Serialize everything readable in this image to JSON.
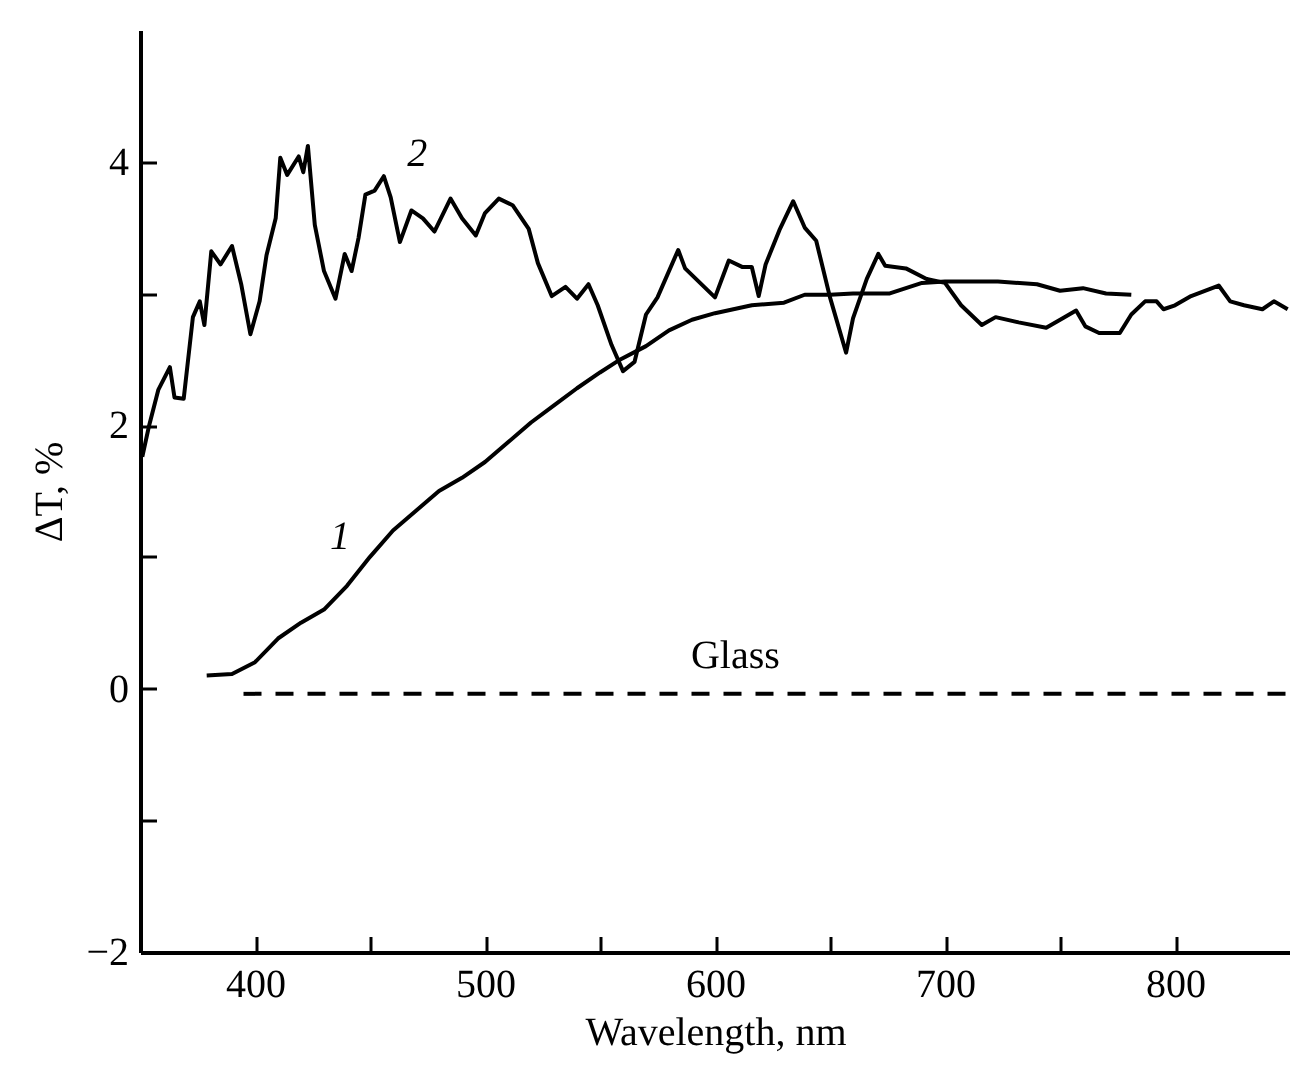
{
  "chart_data": {
    "type": "line",
    "xlabel": "Wavelength, nm",
    "ylabel": "ΔT, %",
    "xlim": [
      350,
      850
    ],
    "ylim": [
      -2,
      5
    ],
    "xticks": [
      {
        "value": 400,
        "label": "400"
      },
      {
        "value": 450,
        "label": null
      },
      {
        "value": 500,
        "label": "500"
      },
      {
        "value": 550,
        "label": null
      },
      {
        "value": 600,
        "label": "600"
      },
      {
        "value": 650,
        "label": null
      },
      {
        "value": 700,
        "label": "700"
      },
      {
        "value": 750,
        "label": null
      },
      {
        "value": 800,
        "label": "800"
      }
    ],
    "yticks": [
      {
        "value": -2,
        "label": "−2"
      },
      {
        "value": -1,
        "label": null
      },
      0,
      {
        "value": 1,
        "label": null
      },
      2,
      {
        "value": 3,
        "label": null
      },
      4
    ],
    "grid": false,
    "series": [
      {
        "name": "1",
        "color": "#000000",
        "line_style": "solid",
        "x": [
          379,
          390,
          400,
          410,
          420,
          430,
          440,
          450,
          460,
          470,
          480,
          490,
          500,
          510,
          520,
          530,
          540,
          550,
          558,
          570,
          580,
          590,
          600,
          616,
          630,
          639,
          650,
          660,
          676,
          690,
          700,
          723,
          740,
          750,
          760,
          770,
          781
        ],
        "values": [
          0.1,
          0.11,
          0.2,
          0.38,
          0.5,
          0.6,
          0.78,
          1.0,
          1.2,
          1.35,
          1.5,
          1.6,
          1.72,
          1.87,
          2.02,
          2.15,
          2.28,
          2.4,
          2.49,
          2.6,
          2.72,
          2.8,
          2.85,
          2.91,
          2.93,
          2.99,
          2.99,
          3.0,
          3.0,
          3.08,
          3.09,
          3.09,
          3.07,
          3.02,
          3.04,
          3.0,
          2.99
        ]
      },
      {
        "name": "2",
        "color": "#000000",
        "line_style": "solid",
        "x": [
          351,
          354,
          358,
          363,
          365,
          369,
          373,
          376,
          378,
          381,
          385,
          390,
          394,
          398,
          402,
          405,
          409,
          411,
          414,
          419,
          421,
          423,
          426,
          430,
          435,
          439,
          442,
          445,
          448,
          452,
          456,
          459,
          463,
          468,
          473,
          478,
          485,
          490,
          496,
          500,
          506,
          512,
          519,
          523,
          529,
          535,
          540,
          545,
          549,
          555,
          560,
          565,
          570,
          575,
          584,
          587,
          600,
          606,
          612,
          616,
          619,
          622,
          628,
          634,
          639,
          644,
          650,
          657,
          660,
          666,
          671,
          674,
          683,
          692,
          700,
          707,
          716,
          722,
          732,
          744,
          751,
          757,
          761,
          767,
          776,
          781,
          787,
          792,
          795,
          800,
          807,
          813,
          819,
          824,
          830,
          838,
          843,
          849
        ],
        "values": [
          1.76,
          2.0,
          2.27,
          2.44,
          2.21,
          2.2,
          2.82,
          2.94,
          2.76,
          3.32,
          3.22,
          3.36,
          3.07,
          2.69,
          2.94,
          3.29,
          3.57,
          4.03,
          3.9,
          4.04,
          3.92,
          4.12,
          3.52,
          3.17,
          2.96,
          3.3,
          3.17,
          3.42,
          3.75,
          3.78,
          3.89,
          3.73,
          3.39,
          3.63,
          3.57,
          3.47,
          3.72,
          3.57,
          3.44,
          3.61,
          3.72,
          3.67,
          3.49,
          3.23,
          2.98,
          3.05,
          2.96,
          3.07,
          2.91,
          2.61,
          2.41,
          2.48,
          2.84,
          2.97,
          3.33,
          3.19,
          2.97,
          3.25,
          3.2,
          3.2,
          2.98,
          3.22,
          3.48,
          3.7,
          3.5,
          3.4,
          2.97,
          2.55,
          2.81,
          3.11,
          3.3,
          3.21,
          3.19,
          3.11,
          3.08,
          2.91,
          2.76,
          2.82,
          2.78,
          2.74,
          2.81,
          2.87,
          2.75,
          2.7,
          2.7,
          2.84,
          2.94,
          2.94,
          2.88,
          2.91,
          2.98,
          3.02,
          3.06,
          2.94,
          2.91,
          2.88,
          2.94,
          2.88
        ]
      },
      {
        "name": "Glass",
        "color": "#000000",
        "line_style": "dashed",
        "x": [
          395,
          850
        ],
        "values": [
          -0.04,
          -0.04
        ]
      }
    ]
  }
}
